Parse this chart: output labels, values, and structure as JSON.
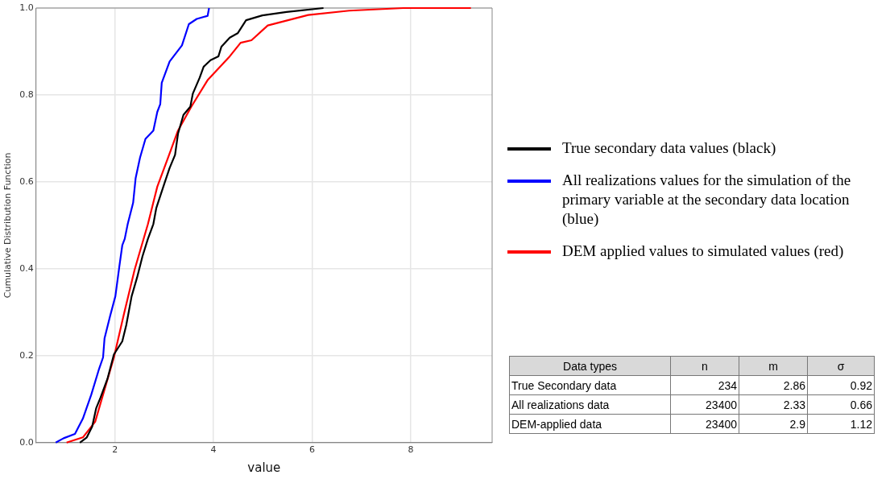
{
  "chart_data": {
    "type": "line",
    "xlabel": "value",
    "ylabel": "Cumulative Distribution Function",
    "xlim": [
      0.4,
      9.65
    ],
    "ylim": [
      0,
      1
    ],
    "xticks": [
      2,
      4,
      6,
      8
    ],
    "yticks": [
      {
        "value": 0,
        "label": "0.0"
      },
      {
        "value": 0.2,
        "label": "0.2"
      },
      {
        "value": 0.4,
        "label": "0.4"
      },
      {
        "value": 0.6,
        "label": "0.6"
      },
      {
        "value": 0.8,
        "label": "0.8"
      },
      {
        "value": 1,
        "label": "1.0"
      }
    ],
    "grid": true,
    "legend": "right",
    "marker": "none",
    "line_style": "solid",
    "series": [
      {
        "name": "True secondary data values (black)",
        "color": "#000000",
        "x": [
          1.29,
          1.43,
          1.54,
          1.62,
          1.71,
          1.85,
          1.98,
          2.15,
          2.23,
          2.34,
          2.45,
          2.56,
          2.67,
          2.78,
          2.84,
          3.0,
          3.11,
          3.22,
          3.28,
          3.39,
          3.53,
          3.58,
          3.72,
          3.8,
          3.94,
          4.1,
          4.16,
          4.33,
          4.49,
          4.66,
          4.99,
          5.48,
          6.23
        ],
        "values": [
          0,
          0.012,
          0.037,
          0.079,
          0.104,
          0.147,
          0.203,
          0.233,
          0.27,
          0.337,
          0.38,
          0.429,
          0.469,
          0.503,
          0.54,
          0.595,
          0.632,
          0.662,
          0.711,
          0.754,
          0.773,
          0.803,
          0.84,
          0.865,
          0.88,
          0.889,
          0.911,
          0.932,
          0.942,
          0.972,
          0.983,
          0.991,
          1.0
        ]
      },
      {
        "name": "All realizations values for the simulation of the primary variable at the secondary data location (blue)",
        "color": "#0000ff",
        "x": [
          0.8,
          0.96,
          1.19,
          1.35,
          1.52,
          1.68,
          1.76,
          1.79,
          1.9,
          2.01,
          2.09,
          2.15,
          2.2,
          2.26,
          2.37,
          2.42,
          2.51,
          2.62,
          2.78,
          2.86,
          2.92,
          2.95,
          3.11,
          3.36,
          3.5,
          3.66,
          3.88,
          3.91
        ],
        "values": [
          0,
          0.01,
          0.02,
          0.055,
          0.11,
          0.17,
          0.196,
          0.24,
          0.29,
          0.337,
          0.405,
          0.454,
          0.469,
          0.503,
          0.552,
          0.608,
          0.656,
          0.699,
          0.718,
          0.761,
          0.779,
          0.828,
          0.877,
          0.914,
          0.963,
          0.975,
          0.982,
          1.0
        ]
      },
      {
        "name": "DEM applied values to simulated values (red)",
        "color": "#ff0000",
        "x": [
          1.02,
          1.35,
          1.6,
          1.79,
          1.98,
          2.18,
          2.4,
          2.67,
          2.86,
          3.06,
          3.28,
          3.55,
          3.88,
          4.33,
          4.55,
          4.77,
          5.1,
          5.92,
          6.75,
          7.85,
          9.22
        ],
        "values": [
          0,
          0.012,
          0.048,
          0.122,
          0.196,
          0.294,
          0.398,
          0.503,
          0.589,
          0.65,
          0.718,
          0.773,
          0.834,
          0.889,
          0.92,
          0.926,
          0.96,
          0.984,
          0.994,
          1.0,
          1.0
        ]
      }
    ],
    "annotations": [
      "Data types",
      "n",
      "m",
      "σ",
      "True Secondary data",
      "234",
      "2.86",
      "0.92",
      "All realizations data",
      "23400",
      "2.33",
      "0.66",
      "DEM-applied data",
      "23400",
      "2.9",
      "1.12"
    ]
  }
}
